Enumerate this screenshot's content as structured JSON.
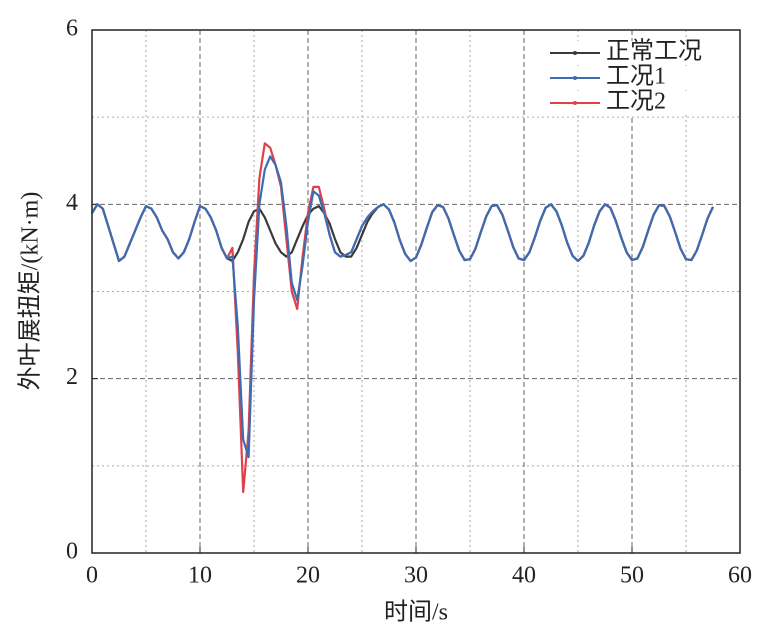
{
  "chart_data": {
    "type": "line",
    "xlabel": "时间/s",
    "ylabel": "外叶展扭矩/(kN·m)",
    "xlim": [
      0,
      60
    ],
    "ylim": [
      0,
      6
    ],
    "xticks": [
      0,
      10,
      20,
      30,
      40,
      50,
      60
    ],
    "yticks": [
      0,
      2,
      4,
      6
    ],
    "x_minor_grid": [
      5,
      15,
      25,
      35,
      45,
      55
    ],
    "y_minor_grid": [
      1,
      3,
      5
    ],
    "grid": true,
    "legend": "upper right",
    "x": [
      0,
      0.5,
      1,
      1.5,
      2,
      2.5,
      3,
      3.5,
      4,
      4.5,
      5,
      5.5,
      6,
      6.5,
      7,
      7.5,
      8,
      8.5,
      9,
      9.5,
      10,
      10.5,
      11,
      11.5,
      12,
      12.5,
      13,
      13.5,
      14,
      14.5,
      15,
      15.5,
      16,
      16.5,
      17,
      17.5,
      18,
      18.5,
      19,
      19.5,
      20,
      20.5,
      21,
      21.5,
      22,
      22.5,
      23,
      23.5,
      24,
      24.5,
      25,
      25.5,
      26,
      26.5,
      27,
      27.5,
      28,
      28.5,
      29,
      29.5,
      30,
      30.5,
      31,
      31.5,
      32,
      32.5,
      33,
      33.5,
      34,
      34.5,
      35,
      35.5,
      36,
      36.5,
      37,
      37.5,
      38,
      38.5,
      39,
      39.5,
      40,
      40.5,
      41,
      41.5,
      42,
      42.5,
      43,
      43.5,
      44,
      44.5,
      45,
      45.5,
      46,
      46.5,
      47,
      47.5,
      48,
      48.5,
      49,
      49.5,
      50,
      50.5,
      51,
      51.5,
      52,
      52.5,
      53,
      53.5,
      54,
      54.5,
      55,
      55.5,
      56,
      56.5,
      57,
      57.5
    ],
    "series": [
      {
        "name": "正常工况",
        "color": "#3a3a3a",
        "values": [
          3.9,
          4.0,
          3.95,
          3.75,
          3.55,
          3.35,
          3.4,
          3.55,
          3.7,
          3.85,
          3.98,
          3.95,
          3.85,
          3.7,
          3.6,
          3.45,
          3.38,
          3.45,
          3.6,
          3.8,
          3.98,
          3.95,
          3.85,
          3.7,
          3.5,
          3.38,
          3.35,
          3.45,
          3.6,
          3.8,
          3.92,
          3.95,
          3.85,
          3.7,
          3.55,
          3.45,
          3.4,
          3.45,
          3.6,
          3.75,
          3.88,
          3.95,
          3.98,
          3.9,
          3.78,
          3.6,
          3.45,
          3.4,
          3.4,
          3.5,
          3.65,
          3.8,
          3.9,
          3.97,
          4.0,
          3.94,
          3.79,
          3.59,
          3.43,
          3.35,
          3.39,
          3.54,
          3.73,
          3.91,
          3.99,
          3.97,
          3.84,
          3.65,
          3.47,
          3.36,
          3.37,
          3.49,
          3.68,
          3.86,
          3.98,
          3.99,
          3.88,
          3.7,
          3.51,
          3.38,
          3.36,
          3.45,
          3.62,
          3.81,
          3.96,
          4.0,
          3.92,
          3.76,
          3.56,
          3.41,
          3.35,
          3.41,
          3.56,
          3.76,
          3.92,
          4.0,
          3.96,
          3.81,
          3.62,
          3.45,
          3.36,
          3.38,
          3.51,
          3.7,
          3.88,
          3.99,
          3.98,
          3.86,
          3.68,
          3.49,
          3.37,
          3.36,
          3.47,
          3.65,
          3.84,
          3.97
        ]
      },
      {
        "name": "工况1",
        "color": "#3b6db3",
        "values": [
          3.9,
          4.0,
          3.95,
          3.75,
          3.55,
          3.35,
          3.4,
          3.55,
          3.7,
          3.85,
          3.98,
          3.95,
          3.85,
          3.7,
          3.6,
          3.45,
          3.38,
          3.45,
          3.6,
          3.8,
          3.98,
          3.95,
          3.85,
          3.7,
          3.5,
          3.38,
          3.4,
          2.6,
          1.3,
          1.1,
          2.9,
          4.0,
          4.4,
          4.55,
          4.45,
          4.25,
          3.75,
          3.1,
          2.9,
          3.3,
          3.8,
          4.15,
          4.1,
          3.9,
          3.65,
          3.45,
          3.4,
          3.42,
          3.45,
          3.6,
          3.75,
          3.85,
          3.92,
          3.97,
          4.0,
          3.94,
          3.79,
          3.59,
          3.43,
          3.35,
          3.39,
          3.54,
          3.73,
          3.91,
          3.99,
          3.97,
          3.84,
          3.65,
          3.47,
          3.36,
          3.37,
          3.49,
          3.68,
          3.86,
          3.98,
          3.99,
          3.88,
          3.7,
          3.51,
          3.38,
          3.36,
          3.45,
          3.62,
          3.81,
          3.96,
          4.0,
          3.92,
          3.76,
          3.56,
          3.41,
          3.35,
          3.41,
          3.56,
          3.76,
          3.92,
          4.0,
          3.96,
          3.81,
          3.62,
          3.45,
          3.36,
          3.38,
          3.51,
          3.7,
          3.88,
          3.99,
          3.98,
          3.86,
          3.68,
          3.49,
          3.37,
          3.36,
          3.47,
          3.65,
          3.84,
          3.97
        ]
      },
      {
        "name": "工况2",
        "color": "#e0404a",
        "values": [
          3.9,
          4.0,
          3.95,
          3.75,
          3.55,
          3.35,
          3.4,
          3.55,
          3.7,
          3.85,
          3.98,
          3.95,
          3.85,
          3.7,
          3.6,
          3.45,
          3.38,
          3.45,
          3.6,
          3.8,
          3.98,
          3.95,
          3.85,
          3.7,
          3.5,
          3.38,
          3.5,
          2.3,
          0.7,
          1.4,
          3.2,
          4.3,
          4.7,
          4.65,
          4.45,
          4.2,
          3.6,
          3.0,
          2.8,
          3.4,
          3.9,
          4.2,
          4.2,
          3.95,
          3.65,
          3.45,
          3.4,
          3.42,
          3.45,
          3.6,
          3.75,
          3.85,
          3.92,
          3.97,
          4.0,
          3.94,
          3.79,
          3.59,
          3.43,
          3.35,
          3.39,
          3.54,
          3.73,
          3.91,
          3.99,
          3.97,
          3.84,
          3.65,
          3.47,
          3.36,
          3.37,
          3.49,
          3.68,
          3.86,
          3.98,
          3.99,
          3.88,
          3.7,
          3.51,
          3.38,
          3.36,
          3.45,
          3.62,
          3.81,
          3.96,
          4.0,
          3.92,
          3.76,
          3.56,
          3.41,
          3.35,
          3.41,
          3.56,
          3.76,
          3.92,
          4.0,
          3.96,
          3.81,
          3.62,
          3.45,
          3.36,
          3.38,
          3.51,
          3.7,
          3.88,
          3.99,
          3.98,
          3.86,
          3.68,
          3.49,
          3.37,
          3.36,
          3.47,
          3.65,
          3.84,
          3.97
        ]
      }
    ]
  }
}
